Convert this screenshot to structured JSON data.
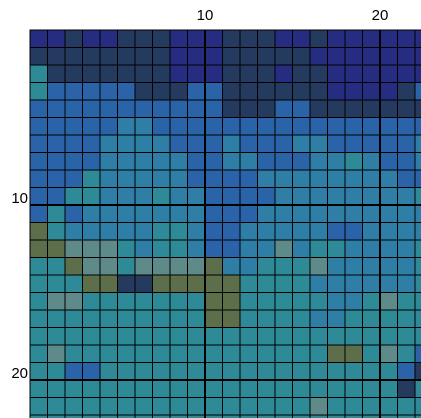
{
  "chart_data": {
    "type": "heatmap",
    "colors": [
      "#262c80",
      "#243a5e",
      "#2b63a9",
      "#2f7ea6",
      "#2e8a96",
      "#5f8a8a",
      "#5c6e4a"
    ],
    "xlim": [
      0,
      23
    ],
    "ylim": [
      0,
      23
    ],
    "xticks": [
      10,
      20
    ],
    "yticks": [
      10,
      20
    ],
    "values": [
      [
        0,
        0,
        1,
        0,
        0,
        1,
        1,
        1,
        0,
        0,
        0,
        1,
        1,
        1,
        0,
        0,
        1,
        0,
        0,
        0,
        0,
        0,
        0
      ],
      [
        1,
        1,
        1,
        1,
        1,
        1,
        1,
        1,
        0,
        0,
        0,
        1,
        1,
        1,
        1,
        1,
        0,
        0,
        0,
        0,
        0,
        0,
        0
      ],
      [
        4,
        1,
        1,
        1,
        1,
        1,
        1,
        1,
        0,
        0,
        0,
        1,
        1,
        1,
        0,
        1,
        1,
        0,
        0,
        0,
        0,
        0,
        0
      ],
      [
        4,
        2,
        2,
        2,
        2,
        2,
        1,
        1,
        1,
        2,
        2,
        1,
        1,
        1,
        1,
        1,
        1,
        0,
        0,
        0,
        0,
        1,
        2
      ],
      [
        2,
        2,
        2,
        2,
        2,
        2,
        2,
        2,
        2,
        2,
        2,
        1,
        1,
        1,
        2,
        2,
        1,
        1,
        1,
        1,
        1,
        1,
        1
      ],
      [
        2,
        2,
        2,
        2,
        2,
        3,
        3,
        2,
        2,
        2,
        2,
        2,
        2,
        2,
        2,
        2,
        2,
        2,
        2,
        2,
        2,
        2,
        2
      ],
      [
        2,
        2,
        2,
        2,
        3,
        3,
        3,
        3,
        2,
        2,
        2,
        3,
        2,
        2,
        2,
        3,
        3,
        2,
        2,
        2,
        2,
        2,
        3
      ],
      [
        2,
        2,
        2,
        2,
        3,
        3,
        3,
        3,
        3,
        2,
        2,
        3,
        3,
        2,
        2,
        2,
        3,
        3,
        4,
        3,
        2,
        2,
        3
      ],
      [
        2,
        2,
        2,
        4,
        3,
        3,
        3,
        3,
        3,
        2,
        2,
        2,
        2,
        3,
        3,
        3,
        3,
        3,
        3,
        3,
        3,
        2,
        2
      ],
      [
        2,
        2,
        4,
        4,
        3,
        3,
        3,
        4,
        3,
        3,
        2,
        2,
        2,
        2,
        3,
        3,
        3,
        3,
        3,
        3,
        3,
        3,
        4
      ],
      [
        2,
        4,
        2,
        3,
        3,
        3,
        3,
        3,
        3,
        3,
        2,
        2,
        2,
        3,
        3,
        3,
        3,
        3,
        3,
        3,
        3,
        3,
        3
      ],
      [
        6,
        4,
        3,
        3,
        3,
        3,
        3,
        4,
        4,
        3,
        2,
        2,
        3,
        3,
        3,
        3,
        3,
        2,
        2,
        3,
        3,
        3,
        3
      ],
      [
        6,
        6,
        5,
        5,
        5,
        4,
        3,
        4,
        4,
        3,
        2,
        2,
        3,
        3,
        5,
        3,
        4,
        4,
        3,
        3,
        3,
        3,
        4
      ],
      [
        4,
        4,
        6,
        5,
        5,
        4,
        5,
        5,
        5,
        5,
        6,
        3,
        3,
        4,
        4,
        4,
        5,
        3,
        3,
        3,
        3,
        3,
        4
      ],
      [
        4,
        4,
        4,
        6,
        6,
        1,
        1,
        6,
        6,
        6,
        6,
        6,
        4,
        4,
        4,
        4,
        3,
        3,
        3,
        3,
        3,
        3,
        4
      ],
      [
        4,
        5,
        5,
        4,
        4,
        4,
        4,
        4,
        4,
        4,
        6,
        6,
        4,
        4,
        4,
        4,
        4,
        3,
        3,
        4,
        5,
        4,
        4
      ],
      [
        4,
        4,
        4,
        4,
        4,
        4,
        4,
        4,
        4,
        4,
        6,
        6,
        4,
        4,
        4,
        4,
        3,
        3,
        4,
        4,
        4,
        4,
        4
      ],
      [
        4,
        4,
        4,
        4,
        4,
        4,
        4,
        4,
        4,
        4,
        4,
        4,
        4,
        4,
        4,
        4,
        4,
        4,
        4,
        4,
        4,
        4,
        4
      ],
      [
        4,
        5,
        4,
        4,
        4,
        4,
        4,
        4,
        4,
        4,
        4,
        4,
        4,
        4,
        4,
        4,
        4,
        6,
        6,
        4,
        5,
        4,
        2
      ],
      [
        4,
        4,
        2,
        2,
        4,
        4,
        4,
        4,
        4,
        4,
        4,
        4,
        4,
        4,
        4,
        4,
        4,
        4,
        4,
        4,
        4,
        2,
        1
      ],
      [
        4,
        4,
        4,
        4,
        4,
        4,
        4,
        4,
        4,
        4,
        4,
        4,
        4,
        4,
        4,
        4,
        4,
        4,
        4,
        4,
        4,
        1,
        4
      ],
      [
        4,
        4,
        4,
        4,
        4,
        4,
        4,
        4,
        4,
        4,
        4,
        4,
        4,
        4,
        4,
        4,
        5,
        4,
        4,
        4,
        4,
        4,
        4
      ],
      [
        4,
        4,
        4,
        4,
        4,
        4,
        4,
        4,
        4,
        4,
        4,
        4,
        4,
        4,
        4,
        4,
        4,
        4,
        4,
        4,
        4,
        4,
        4
      ]
    ]
  }
}
